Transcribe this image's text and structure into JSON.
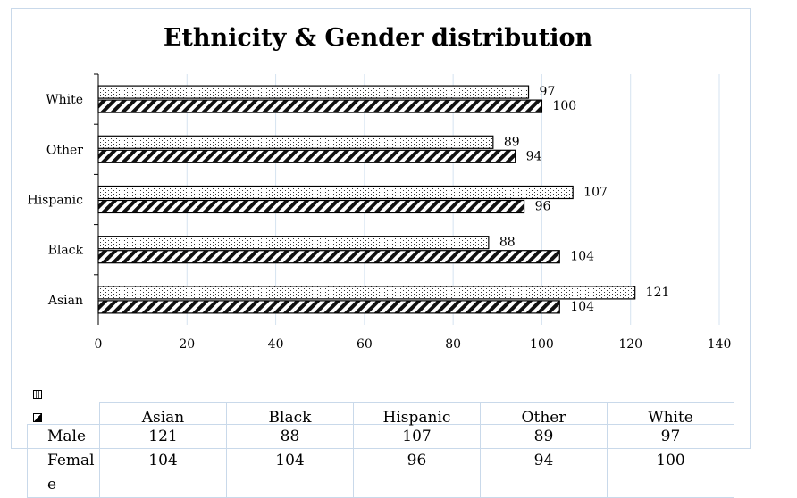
{
  "chart_data": {
    "type": "bar",
    "orientation": "horizontal",
    "title": "Ethnicity & Gender distribution",
    "categories": [
      "Asian",
      "Black",
      "Hispanic",
      "Other",
      "White"
    ],
    "series": [
      {
        "name": "Male",
        "values": [
          121,
          88,
          107,
          89,
          97
        ],
        "pattern": "dots"
      },
      {
        "name": "Female",
        "values": [
          104,
          104,
          96,
          94,
          100
        ],
        "pattern": "diagonal-stripes"
      }
    ],
    "xlim": [
      0,
      140
    ],
    "x_ticks": [
      "0",
      "20",
      "40",
      "60",
      "80",
      "100",
      "120",
      "140"
    ],
    "grid": "vertical",
    "data_labels": true,
    "legend": "data-table-below"
  },
  "table": {
    "rows": [
      {
        "label": "Male",
        "values": [
          "121",
          "88",
          "107",
          "89",
          "97"
        ]
      },
      {
        "label": "Femal\ne",
        "values": [
          "104",
          "104",
          "96",
          "94",
          "100"
        ]
      }
    ]
  },
  "colors": {
    "grid": "#d6e3f0",
    "border": "#c9d9ea",
    "bar_outline": "#000000"
  }
}
